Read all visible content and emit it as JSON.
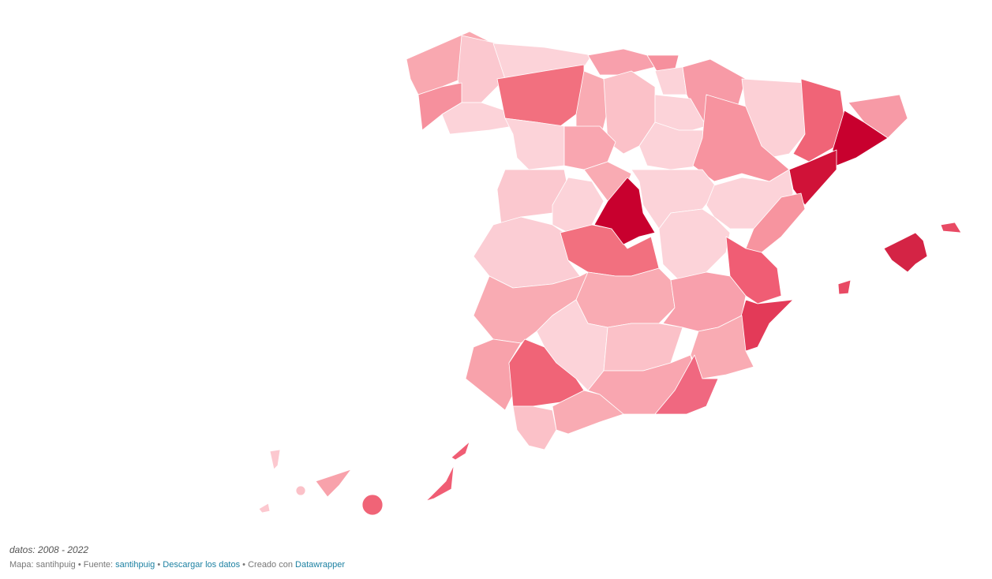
{
  "footer": {
    "note": "datos: 2008 - 2022",
    "map_label": "Mapa: santihpuig",
    "separator": "•",
    "source_label": "Fuente:",
    "source_link": "santihpuig",
    "download_link": "Descargar los datos",
    "created_label": "Creado con",
    "created_link": "Datawrapper"
  }
}
